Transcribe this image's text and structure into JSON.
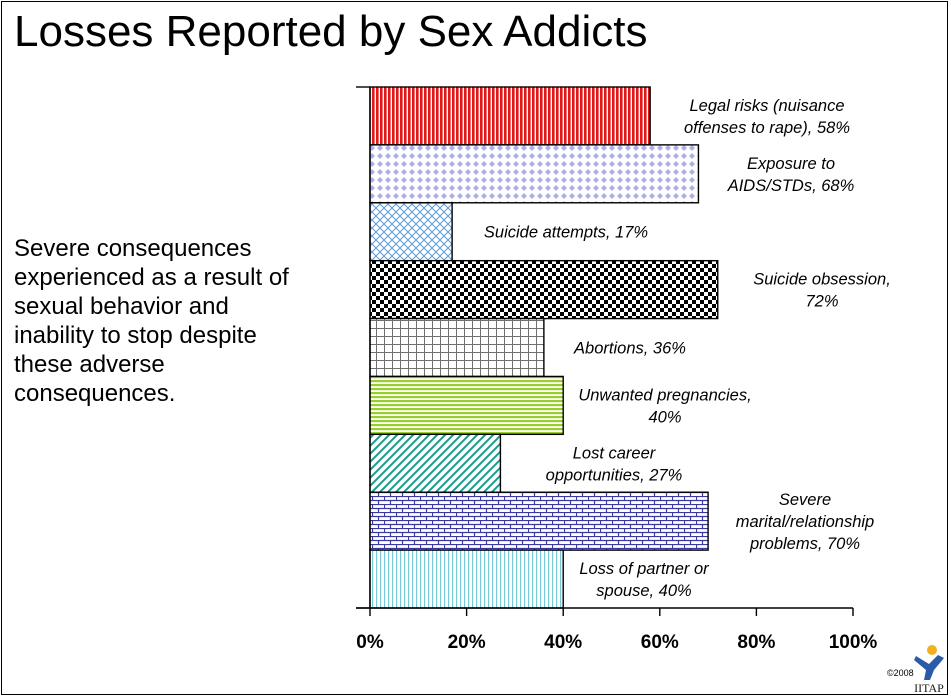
{
  "title": "Losses Reported by Sex Addicts",
  "description_lines": [
    "Severe consequences",
    "experienced as a result of",
    "sexual behavior and",
    "inability to stop despite",
    "these adverse",
    "consequences."
  ],
  "copyright": "©2008",
  "logo_text": "IITAP",
  "chart_data": {
    "type": "bar",
    "orientation": "horizontal",
    "title": "Losses Reported by Sex Addicts",
    "xlim": [
      0,
      100
    ],
    "xticks": [
      0,
      20,
      40,
      60,
      80,
      100
    ],
    "xtick_labels": [
      "0%",
      "20%",
      "40%",
      "60%",
      "80%",
      "100%"
    ],
    "grid": false,
    "bars": [
      {
        "value": 58,
        "label_lines": [
          "Legal risks (nuisance",
          "offenses to rape), 58%"
        ],
        "color": "#e01818",
        "pattern": "vlines"
      },
      {
        "value": 68,
        "label_lines": [
          "Exposure to",
          "AIDS/STDs, 68%"
        ],
        "color": "#b0b0e8",
        "pattern": "diamonds"
      },
      {
        "value": 17,
        "label_lines": [
          "Suicide attempts, 17%"
        ],
        "color": "#5a9ad8",
        "pattern": "crosshatch"
      },
      {
        "value": 72,
        "label_lines": [
          "Suicide obsession,",
          "72%"
        ],
        "color": "#000000",
        "pattern": "checker"
      },
      {
        "value": 36,
        "label_lines": [
          "Abortions, 36%"
        ],
        "color": "#707070",
        "pattern": "grid"
      },
      {
        "value": 40,
        "label_lines": [
          "Unwanted pregnancies,",
          "40%"
        ],
        "color": "#9acd32",
        "pattern": "hlines"
      },
      {
        "value": 27,
        "label_lines": [
          "Lost career",
          "opportunities, 27%"
        ],
        "color": "#1a9a8a",
        "pattern": "diagonal"
      },
      {
        "value": 70,
        "label_lines": [
          "Severe",
          "marital/relationship",
          "problems, 70%"
        ],
        "color": "#3a3aa0",
        "pattern": "brick"
      },
      {
        "value": 40,
        "label_lines": [
          "Loss of partner or",
          "spouse, 40%"
        ],
        "color": "#7ac8d8",
        "pattern": "vthin"
      }
    ]
  }
}
